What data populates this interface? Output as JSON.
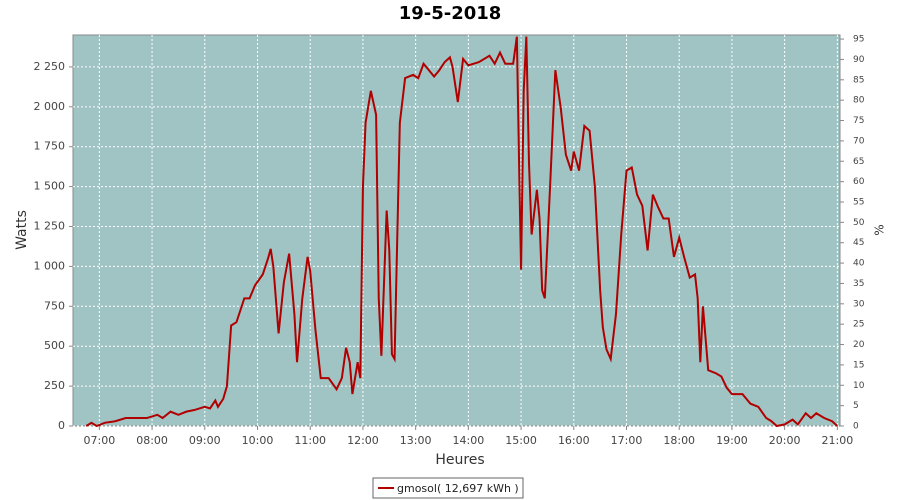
{
  "chart_data": {
    "type": "line",
    "title": "19-5-2018",
    "x_label": "Heures",
    "y_label": "Watts",
    "y2_label": "%",
    "xlim": [
      6.5,
      21.05
    ],
    "ylim": [
      0,
      2450
    ],
    "y2lim": [
      0,
      96
    ],
    "xticks": [
      {
        "value": 7,
        "label": "07:00"
      },
      {
        "value": 8,
        "label": "08:00"
      },
      {
        "value": 9,
        "label": "09:00"
      },
      {
        "value": 10,
        "label": "10:00"
      },
      {
        "value": 11,
        "label": "11:00"
      },
      {
        "value": 12,
        "label": "12:00"
      },
      {
        "value": 13,
        "label": "13:00"
      },
      {
        "value": 14,
        "label": "14:00"
      },
      {
        "value": 15,
        "label": "15:00"
      },
      {
        "value": 16,
        "label": "16:00"
      },
      {
        "value": 17,
        "label": "17:00"
      },
      {
        "value": 18,
        "label": "18:00"
      },
      {
        "value": 19,
        "label": "19:00"
      },
      {
        "value": 20,
        "label": "20:00"
      },
      {
        "value": 21,
        "label": "21:00"
      }
    ],
    "yticks": [
      0,
      250,
      500,
      750,
      {
        "value": 1000,
        "label": "1 000"
      },
      {
        "value": 1250,
        "label": "1 250"
      },
      {
        "value": 1500,
        "label": "1 500"
      },
      {
        "value": 1750,
        "label": "1 750"
      },
      {
        "value": 2000,
        "label": "2 000"
      },
      {
        "value": 2250,
        "label": "2 250"
      }
    ],
    "y2ticks": [
      0,
      5,
      10,
      15,
      20,
      25,
      30,
      35,
      40,
      45,
      50,
      55,
      60,
      65,
      70,
      75,
      80,
      85,
      90,
      95
    ],
    "grid": true,
    "background": "#a0c4c4",
    "legend": "bottom",
    "x": [
      6.75,
      6.85,
      6.95,
      7.1,
      7.3,
      7.5,
      7.7,
      7.9,
      8.1,
      8.2,
      8.35,
      8.5,
      8.65,
      8.8,
      9.0,
      9.1,
      9.2,
      9.25,
      9.35,
      9.42,
      9.5,
      9.6,
      9.75,
      9.85,
      9.95,
      10.1,
      10.2,
      10.25,
      10.3,
      10.4,
      10.5,
      10.6,
      10.7,
      10.75,
      10.85,
      10.95,
      11.0,
      11.1,
      11.2,
      11.35,
      11.5,
      11.6,
      11.68,
      11.75,
      11.8,
      11.9,
      11.95,
      12.0,
      12.05,
      12.15,
      12.25,
      12.3,
      12.35,
      12.45,
      12.5,
      12.55,
      12.6,
      12.7,
      12.8,
      12.95,
      13.05,
      13.15,
      13.25,
      13.35,
      13.45,
      13.55,
      13.65,
      13.7,
      13.8,
      13.9,
      14.0,
      14.2,
      14.4,
      14.5,
      14.6,
      14.7,
      14.85,
      14.92,
      14.97,
      15.0,
      15.05,
      15.1,
      15.15,
      15.2,
      15.3,
      15.35,
      15.4,
      15.45,
      15.55,
      15.65,
      15.75,
      15.85,
      15.95,
      16.0,
      16.1,
      16.2,
      16.3,
      16.4,
      16.5,
      16.55,
      16.62,
      16.7,
      16.8,
      16.9,
      17.0,
      17.1,
      17.2,
      17.3,
      17.4,
      17.5,
      17.6,
      17.7,
      17.8,
      17.9,
      18.0,
      18.1,
      18.2,
      18.3,
      18.35,
      18.4,
      18.45,
      18.55,
      18.7,
      18.8,
      18.9,
      19.0,
      19.2,
      19.35,
      19.5,
      19.65,
      19.75,
      19.85,
      20.0,
      20.15,
      20.25,
      20.4,
      20.5,
      20.6,
      20.75,
      20.9,
      21.0
    ],
    "series": [
      {
        "name": "gmosol( 12,697 kWh )",
        "color": "#b00000",
        "values": [
          0,
          20,
          0,
          20,
          30,
          50,
          50,
          50,
          70,
          50,
          90,
          70,
          90,
          100,
          120,
          110,
          160,
          120,
          170,
          250,
          630,
          650,
          800,
          800,
          880,
          950,
          1050,
          1110,
          1000,
          580,
          900,
          1080,
          700,
          400,
          800,
          1060,
          970,
          600,
          300,
          300,
          230,
          300,
          490,
          400,
          200,
          400,
          300,
          1500,
          1900,
          2100,
          1950,
          800,
          440,
          1350,
          1100,
          450,
          420,
          1900,
          2180,
          2200,
          2180,
          2270,
          2230,
          2190,
          2230,
          2280,
          2310,
          2250,
          2030,
          2300,
          2260,
          2280,
          2320,
          2270,
          2340,
          2270,
          2270,
          2440,
          1500,
          980,
          2100,
          2440,
          1650,
          1200,
          1480,
          1300,
          850,
          800,
          1500,
          2230,
          2000,
          1700,
          1600,
          1720,
          1600,
          1880,
          1850,
          1500,
          850,
          620,
          480,
          420,
          700,
          1200,
          1600,
          1620,
          1450,
          1380,
          1100,
          1450,
          1370,
          1300,
          1300,
          1060,
          1180,
          1050,
          930,
          950,
          800,
          400,
          750,
          350,
          330,
          310,
          240,
          200,
          200,
          140,
          120,
          50,
          30,
          0,
          10,
          40,
          10,
          80,
          50,
          80,
          50,
          30,
          0
        ]
      }
    ]
  }
}
